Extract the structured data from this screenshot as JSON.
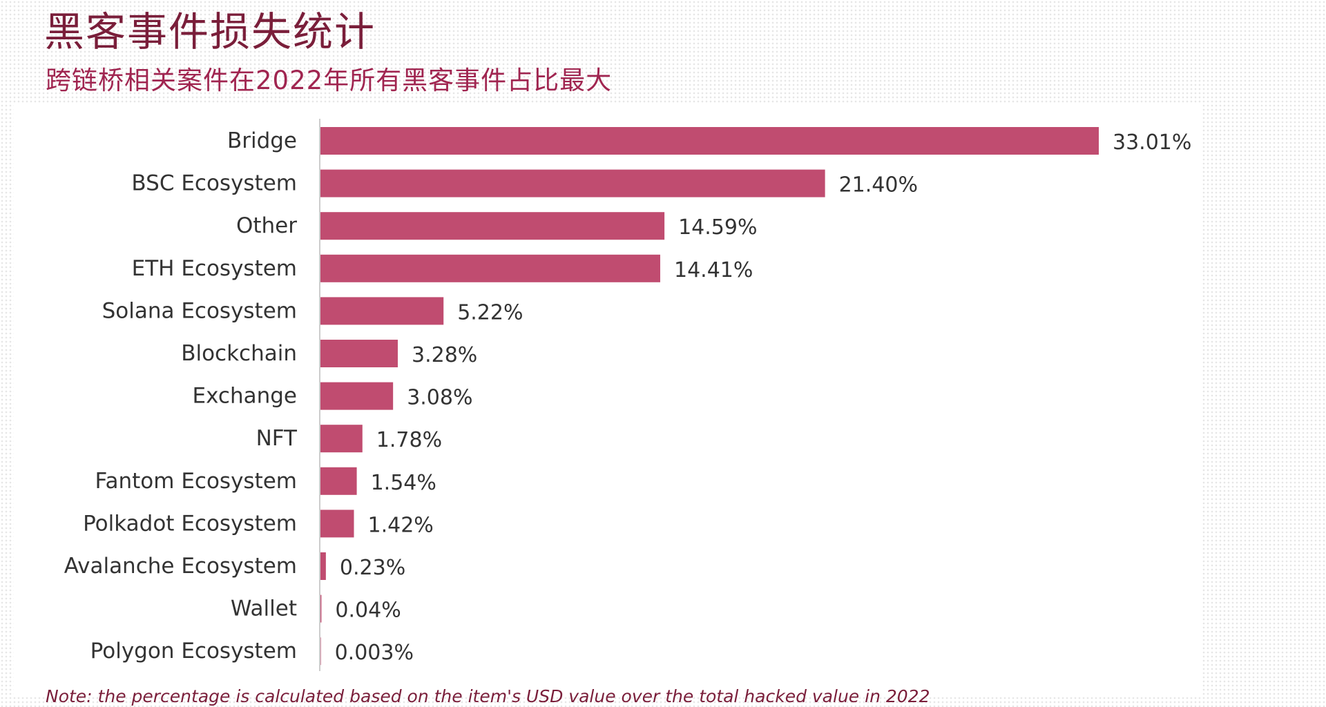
{
  "header": {
    "title": "黑客事件损失统计",
    "subtitle": "跨链桥相关案件在2022年所有黑客事件占比最大"
  },
  "note": "Note: the percentage is calculated based on the item's USD value over the total hacked value in 2022",
  "colors": {
    "bar": "#c04c70",
    "title": "#7a1e3a",
    "subtitle": "#a02550",
    "label_text": "#333333",
    "axis": "#cccccc"
  },
  "chart_data": {
    "type": "bar",
    "orientation": "horizontal",
    "categories": [
      "Bridge",
      "BSC Ecosystem",
      "Other",
      "ETH Ecosystem",
      "Solana Ecosystem",
      "Blockchain",
      "Exchange",
      "NFT",
      "Fantom Ecosystem",
      "Polkadot Ecosystem",
      "Avalanche Ecosystem",
      "Wallet",
      "Polygon Ecosystem"
    ],
    "values": [
      33.01,
      21.4,
      14.59,
      14.41,
      5.22,
      3.28,
      3.08,
      1.78,
      1.54,
      1.42,
      0.23,
      0.04,
      0.003
    ],
    "value_labels": [
      "33.01%",
      "21.40%",
      "14.59%",
      "14.41%",
      "5.22%",
      "3.28%",
      "3.08%",
      "1.78%",
      "1.54%",
      "1.42%",
      "0.23%",
      "0.04%",
      "0.003%"
    ],
    "unit": "%",
    "xlim": [
      0,
      33.01
    ],
    "grid": false,
    "legend": "none"
  }
}
